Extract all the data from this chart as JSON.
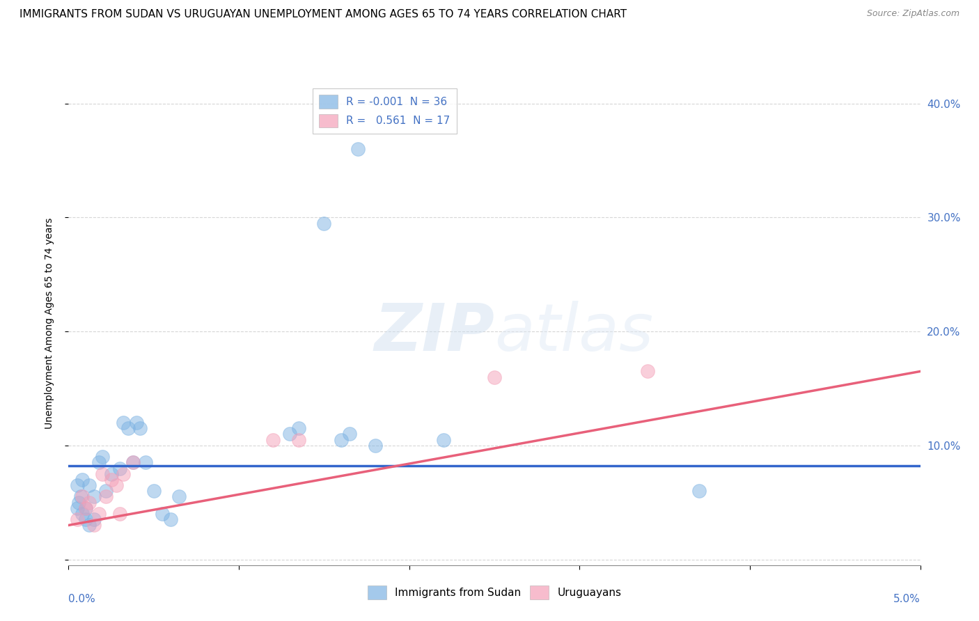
{
  "title": "IMMIGRANTS FROM SUDAN VS URUGUAYAN UNEMPLOYMENT AMONG AGES 65 TO 74 YEARS CORRELATION CHART",
  "source": "Source: ZipAtlas.com",
  "ylabel": "Unemployment Among Ages 65 to 74 years",
  "xlim": [
    0.0,
    5.0
  ],
  "ylim": [
    -0.5,
    42.0
  ],
  "yticks": [
    0.0,
    10.0,
    20.0,
    30.0,
    40.0
  ],
  "ytick_labels": [
    "",
    "10.0%",
    "20.0%",
    "30.0%",
    "40.0%"
  ],
  "xtick_positions": [
    0.0,
    1.0,
    2.0,
    3.0,
    4.0,
    5.0
  ],
  "blue_scatter": [
    [
      0.08,
      7.0
    ],
    [
      0.12,
      6.5
    ],
    [
      0.15,
      5.5
    ],
    [
      0.1,
      4.5
    ],
    [
      0.18,
      8.5
    ],
    [
      0.2,
      9.0
    ],
    [
      0.22,
      6.0
    ],
    [
      0.25,
      7.5
    ],
    [
      0.3,
      8.0
    ],
    [
      0.32,
      12.0
    ],
    [
      0.35,
      11.5
    ],
    [
      0.38,
      8.5
    ],
    [
      0.4,
      12.0
    ],
    [
      0.42,
      11.5
    ],
    [
      0.45,
      8.5
    ],
    [
      0.5,
      6.0
    ],
    [
      0.55,
      4.0
    ],
    [
      0.6,
      3.5
    ],
    [
      0.65,
      5.5
    ],
    [
      0.05,
      6.5
    ],
    [
      0.07,
      5.5
    ],
    [
      0.06,
      5.0
    ],
    [
      0.05,
      4.5
    ],
    [
      0.08,
      4.0
    ],
    [
      0.1,
      3.5
    ],
    [
      0.12,
      3.0
    ],
    [
      0.15,
      3.5
    ],
    [
      1.3,
      11.0
    ],
    [
      1.35,
      11.5
    ],
    [
      1.6,
      10.5
    ],
    [
      1.65,
      11.0
    ],
    [
      1.8,
      10.0
    ],
    [
      2.2,
      10.5
    ],
    [
      1.5,
      29.5
    ],
    [
      1.7,
      36.0
    ],
    [
      3.7,
      6.0
    ]
  ],
  "pink_scatter": [
    [
      0.05,
      3.5
    ],
    [
      0.08,
      5.5
    ],
    [
      0.1,
      4.5
    ],
    [
      0.12,
      5.0
    ],
    [
      0.15,
      3.0
    ],
    [
      0.18,
      4.0
    ],
    [
      0.2,
      7.5
    ],
    [
      0.22,
      5.5
    ],
    [
      0.25,
      7.0
    ],
    [
      0.28,
      6.5
    ],
    [
      0.3,
      4.0
    ],
    [
      0.32,
      7.5
    ],
    [
      0.38,
      8.5
    ],
    [
      1.2,
      10.5
    ],
    [
      1.35,
      10.5
    ],
    [
      2.5,
      16.0
    ],
    [
      3.4,
      16.5
    ]
  ],
  "blue_line_x": [
    0.0,
    5.0
  ],
  "blue_line_y": [
    8.2,
    8.2
  ],
  "pink_line_x": [
    0.0,
    5.0
  ],
  "pink_line_y": [
    3.0,
    16.5
  ],
  "blue_color": "#7EB3E3",
  "pink_color": "#F4A0B8",
  "blue_line_color": "#3366CC",
  "pink_line_color": "#E8607A",
  "background_color": "#ffffff",
  "grid_color": "#cccccc",
  "title_fontsize": 11,
  "axis_label_fontsize": 10,
  "tick_color": "#4472c4",
  "source_fontsize": 9
}
